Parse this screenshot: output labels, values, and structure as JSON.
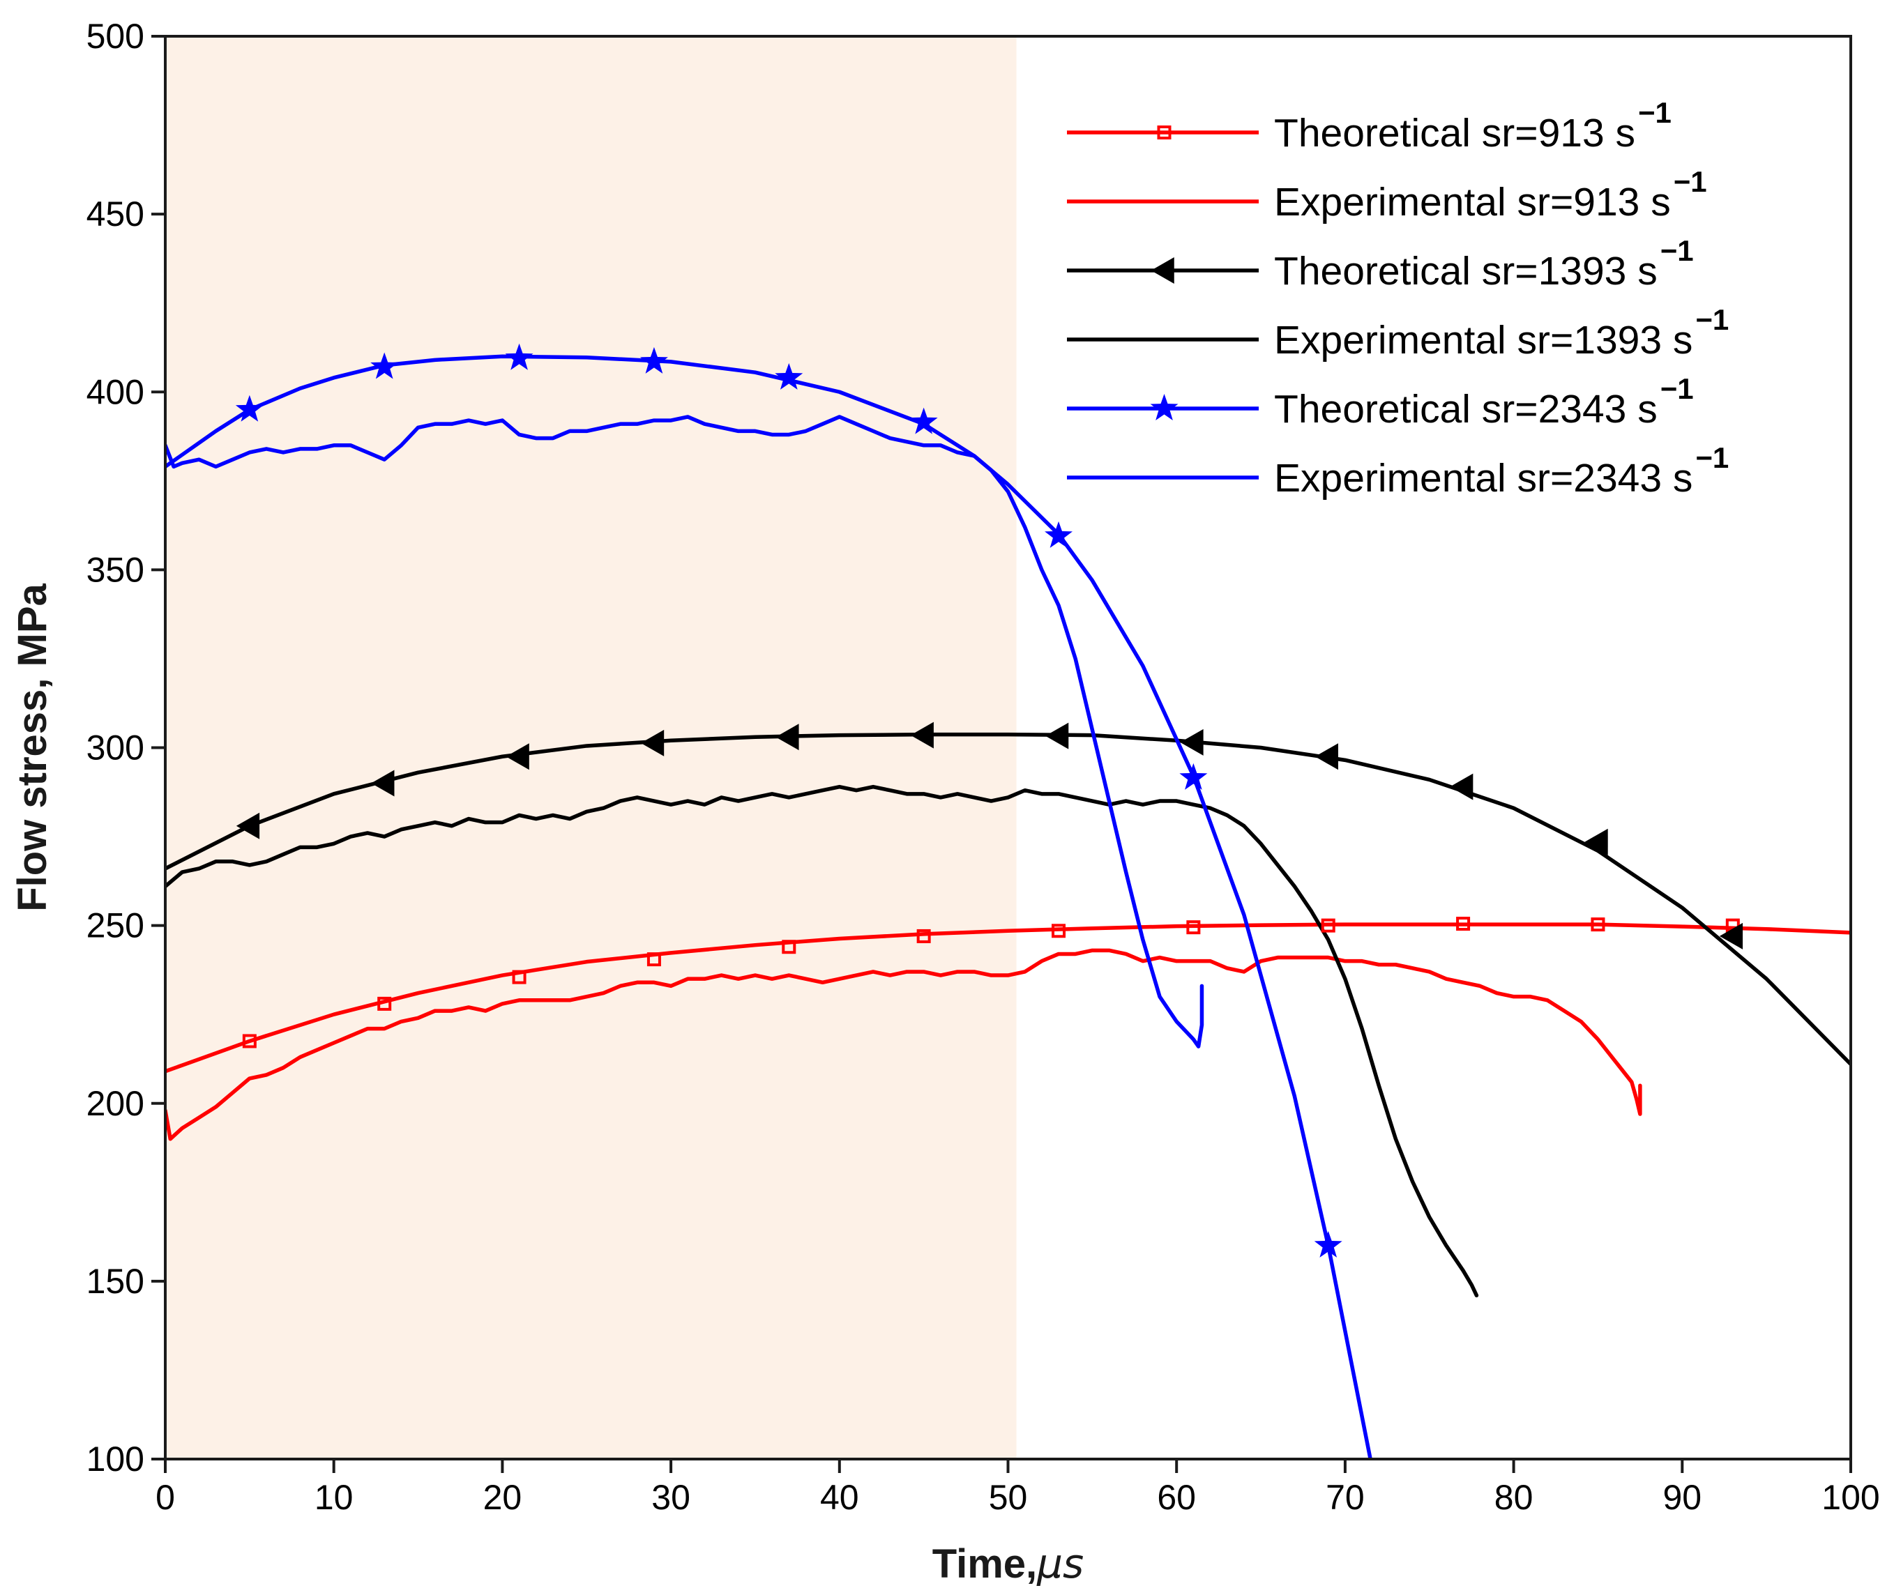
{
  "chart_data": {
    "type": "line",
    "xlabel": "Time,",
    "xlabel_unit": "μs",
    "ylabel": "Flow stress, MPa",
    "xlim": [
      0,
      100
    ],
    "ylim": [
      100,
      500
    ],
    "xticks": [
      0,
      10,
      20,
      30,
      40,
      50,
      60,
      70,
      80,
      90,
      100
    ],
    "yticks": [
      100,
      150,
      200,
      250,
      300,
      350,
      400,
      450,
      500
    ],
    "grid": false,
    "legend_position": "top-right",
    "shaded_region": {
      "x_from": 0,
      "x_to": 50.5,
      "color": "#fdf1e7"
    },
    "series": [
      {
        "name": "Theoretical sr=913 s",
        "sup": "−1",
        "color": "#ff0000",
        "style": "line-marker",
        "marker": "square",
        "x": [
          0,
          5,
          10,
          15,
          20,
          25,
          30,
          35,
          40,
          45,
          50,
          55,
          60,
          65,
          70,
          75,
          80,
          85,
          90,
          95,
          100
        ],
        "y": [
          209,
          217.5,
          225,
          231,
          236,
          239.8,
          242.3,
          244.5,
          246.3,
          247.6,
          248.5,
          249.2,
          249.8,
          250.1,
          250.3,
          250.3,
          250.3,
          250.3,
          249.7,
          249,
          248
        ],
        "marker_x": [
          5,
          13,
          21,
          29,
          37,
          45,
          53,
          61,
          69,
          77,
          85,
          93
        ],
        "marker_y": [
          217.5,
          228,
          235.5,
          240.5,
          244,
          247,
          248.5,
          249.5,
          250,
          250.5,
          250.3,
          250
        ]
      },
      {
        "name": "Experimental sr=913 s",
        "sup": "−1",
        "color": "#ff0000",
        "style": "line",
        "x": [
          0,
          0.3,
          1,
          2,
          3,
          4,
          5,
          6,
          7,
          8,
          9,
          10,
          11,
          12,
          13,
          14,
          15,
          16,
          17,
          18,
          19,
          20,
          21,
          22,
          23,
          24,
          25,
          26,
          27,
          28,
          29,
          30,
          31,
          32,
          33,
          34,
          35,
          36,
          37,
          38,
          39,
          40,
          41,
          42,
          43,
          44,
          45,
          46,
          47,
          48,
          49,
          50,
          51,
          52,
          53,
          54,
          55,
          56,
          57,
          58,
          59,
          60,
          61,
          62,
          63,
          64,
          65,
          66,
          67,
          68,
          69,
          70,
          71,
          72,
          73,
          74,
          75,
          76,
          77,
          78,
          79,
          80,
          81,
          82,
          83,
          84,
          85,
          86,
          87,
          87.3,
          87.5,
          87.5
        ],
        "y": [
          198,
          190,
          193,
          196,
          199,
          203,
          207,
          208,
          210,
          213,
          215,
          217,
          219,
          221,
          221,
          223,
          224,
          226,
          226,
          227,
          226,
          228,
          229,
          229,
          229,
          229,
          230,
          231,
          233,
          234,
          234,
          233,
          235,
          235,
          236,
          235,
          236,
          235,
          236,
          235,
          234,
          235,
          236,
          237,
          236,
          237,
          237,
          236,
          237,
          237,
          236,
          236,
          237,
          240,
          242,
          242,
          243,
          243,
          242,
          240,
          241,
          240,
          240,
          240,
          238,
          237,
          240,
          241,
          241,
          241,
          241,
          240,
          240,
          239,
          239,
          238,
          237,
          235,
          234,
          233,
          231,
          230,
          230,
          229,
          226,
          223,
          218,
          212,
          206,
          201,
          197,
          205
        ]
      },
      {
        "name": "Theoretical sr=1393 s",
        "sup": "−1",
        "color": "#000000",
        "style": "line-marker",
        "marker": "triangle-left",
        "x": [
          0,
          5,
          10,
          15,
          20,
          25,
          30,
          35,
          40,
          45,
          50,
          55,
          60,
          65,
          70,
          75,
          80,
          85,
          90,
          95,
          100
        ],
        "y": [
          266,
          278,
          287,
          293,
          297.5,
          300.5,
          302,
          303,
          303.5,
          303.7,
          303.7,
          303.5,
          302,
          300,
          296.5,
          291,
          283,
          271,
          255,
          235,
          211
        ],
        "marker_x": [
          5,
          13,
          21,
          29,
          37,
          45,
          53,
          61,
          69,
          77,
          85,
          93
        ],
        "marker_y": [
          278,
          290,
          297.5,
          301.3,
          303,
          303.5,
          303.3,
          301.5,
          297.5,
          289,
          273.5,
          247
        ]
      },
      {
        "name": "Experimental sr=1393 s",
        "sup": "−1",
        "color": "#000000",
        "style": "line",
        "x": [
          0,
          1,
          2,
          3,
          4,
          5,
          6,
          7,
          8,
          9,
          10,
          11,
          12,
          13,
          14,
          15,
          16,
          17,
          18,
          19,
          20,
          21,
          22,
          23,
          24,
          25,
          26,
          27,
          28,
          29,
          30,
          31,
          32,
          33,
          34,
          35,
          36,
          37,
          38,
          39,
          40,
          41,
          42,
          43,
          44,
          45,
          46,
          47,
          48,
          49,
          50,
          51,
          52,
          53,
          54,
          55,
          56,
          57,
          58,
          59,
          60,
          61,
          62,
          63,
          64,
          65,
          66,
          67,
          68,
          69,
          70,
          71,
          72,
          73,
          74,
          75,
          76,
          77,
          77.5,
          77.8
        ],
        "y": [
          261,
          265,
          266,
          268,
          268,
          267,
          268,
          270,
          272,
          272,
          273,
          275,
          276,
          275,
          277,
          278,
          279,
          278,
          280,
          279,
          279,
          281,
          280,
          281,
          280,
          282,
          283,
          285,
          286,
          285,
          284,
          285,
          284,
          286,
          285,
          286,
          287,
          286,
          287,
          288,
          289,
          288,
          289,
          288,
          287,
          287,
          286,
          287,
          286,
          285,
          286,
          288,
          287,
          287,
          286,
          285,
          284,
          285,
          284,
          285,
          285,
          284,
          283,
          281,
          278,
          273,
          267,
          261,
          254,
          246,
          235,
          221,
          205,
          190,
          178,
          168,
          160,
          153,
          149,
          146
        ]
      },
      {
        "name": "Theoretical sr=2343 s",
        "sup": "−1",
        "color": "#0000ff",
        "style": "line-marker",
        "marker": "star",
        "x": [
          0,
          3,
          5,
          8,
          10,
          13,
          16,
          20,
          25,
          30,
          35,
          40,
          45,
          48,
          50,
          53,
          55,
          58,
          61,
          64,
          67,
          69,
          71.5
        ],
        "y": [
          379,
          389,
          395,
          401,
          404,
          407.5,
          409,
          410,
          409.7,
          408.5,
          405.5,
          400,
          391,
          382,
          374,
          360,
          347,
          323,
          292,
          253,
          202,
          160,
          100
        ],
        "marker_x": [
          5,
          13,
          21,
          29,
          37,
          45,
          53,
          61,
          69
        ],
        "marker_y": [
          395,
          407,
          409.5,
          408.5,
          404,
          391.5,
          359.5,
          291.5,
          160
        ]
      },
      {
        "name": "Experimental sr=2343 s",
        "sup": "−1",
        "color": "#0000ff",
        "style": "line",
        "x": [
          0,
          0.5,
          1,
          2,
          3,
          4,
          5,
          6,
          7,
          8,
          9,
          10,
          11,
          12,
          13,
          14,
          15,
          16,
          17,
          18,
          19,
          20,
          21,
          22,
          23,
          24,
          25,
          26,
          27,
          28,
          29,
          30,
          31,
          32,
          33,
          34,
          35,
          36,
          37,
          38,
          39,
          40,
          41,
          42,
          43,
          44,
          45,
          46,
          47,
          48,
          49,
          50,
          51,
          52,
          53,
          54,
          55,
          56,
          57,
          58,
          59,
          60,
          61,
          61.3,
          61.5,
          61.5
        ],
        "y": [
          385,
          379,
          380,
          381,
          379,
          381,
          383,
          384,
          383,
          384,
          384,
          385,
          385,
          383,
          381,
          385,
          390,
          391,
          391,
          392,
          391,
          392,
          388,
          387,
          387,
          389,
          389,
          390,
          391,
          391,
          392,
          392,
          393,
          391,
          390,
          389,
          389,
          388,
          388,
          389,
          391,
          393,
          391,
          389,
          387,
          386,
          385,
          385,
          383,
          382,
          378,
          372,
          362,
          350,
          340,
          325,
          305,
          285,
          265,
          246,
          230,
          223,
          218,
          216,
          222,
          233
        ]
      }
    ]
  }
}
